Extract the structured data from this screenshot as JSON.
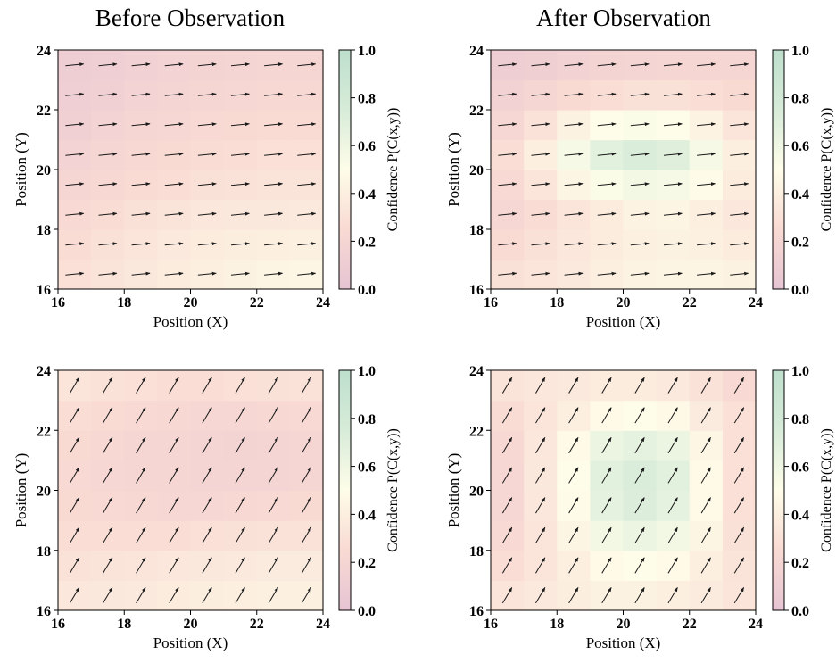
{
  "figure": {
    "column_titles": [
      "Before Observation",
      "After Observation"
    ]
  },
  "chart_data": [
    {
      "type": "heatmap",
      "panel": "top-left",
      "title": "Before Observation",
      "xlabel": "Position (X)",
      "ylabel": "Position (Y)",
      "xlim": [
        16,
        24
      ],
      "ylim": [
        16,
        24
      ],
      "xticks": [
        "16",
        "18",
        "20",
        "22",
        "24"
      ],
      "yticks": [
        "16",
        "18",
        "20",
        "22",
        "24"
      ],
      "grid_x": [
        16.5,
        17.5,
        18.5,
        19.5,
        20.5,
        21.5,
        22.5,
        23.5
      ],
      "grid_y": [
        16.5,
        17.5,
        18.5,
        19.5,
        20.5,
        21.5,
        22.5,
        23.5
      ],
      "values": [
        [
          0.29,
          0.32,
          0.35,
          0.38,
          0.4,
          0.42,
          0.44,
          0.45
        ],
        [
          0.27,
          0.3,
          0.33,
          0.36,
          0.38,
          0.39,
          0.4,
          0.41
        ],
        [
          0.24,
          0.27,
          0.3,
          0.32,
          0.34,
          0.35,
          0.35,
          0.36
        ],
        [
          0.2,
          0.23,
          0.26,
          0.28,
          0.3,
          0.31,
          0.32,
          0.32
        ],
        [
          0.17,
          0.2,
          0.23,
          0.25,
          0.27,
          0.28,
          0.29,
          0.29
        ],
        [
          0.14,
          0.17,
          0.2,
          0.22,
          0.24,
          0.25,
          0.26,
          0.26
        ],
        [
          0.12,
          0.14,
          0.17,
          0.19,
          0.21,
          0.22,
          0.23,
          0.23
        ],
        [
          0.1,
          0.12,
          0.15,
          0.17,
          0.18,
          0.19,
          0.2,
          0.2
        ]
      ],
      "vector": {
        "dx": 0.55,
        "dy": 0.06
      },
      "colorbar": {
        "label": "Confidence P(C(x,y))",
        "ticks": [
          "0.0",
          "0.2",
          "0.4",
          "0.6",
          "0.8",
          "1.0"
        ],
        "range": [
          0,
          1
        ]
      }
    },
    {
      "type": "heatmap",
      "panel": "top-right",
      "title": "After Observation",
      "xlabel": "Position (X)",
      "ylabel": "Position (Y)",
      "xlim": [
        16,
        24
      ],
      "ylim": [
        16,
        24
      ],
      "xticks": [
        "16",
        "18",
        "20",
        "22",
        "24"
      ],
      "yticks": [
        "16",
        "18",
        "20",
        "22",
        "24"
      ],
      "grid_x": [
        16.5,
        17.5,
        18.5,
        19.5,
        20.5,
        21.5,
        22.5,
        23.5
      ],
      "grid_y": [
        16.5,
        17.5,
        18.5,
        19.5,
        20.5,
        21.5,
        22.5,
        23.5
      ],
      "values": [
        [
          0.3,
          0.33,
          0.36,
          0.4,
          0.43,
          0.44,
          0.44,
          0.42
        ],
        [
          0.26,
          0.3,
          0.34,
          0.38,
          0.41,
          0.42,
          0.41,
          0.38
        ],
        [
          0.22,
          0.27,
          0.33,
          0.38,
          0.43,
          0.44,
          0.4,
          0.34
        ],
        [
          0.24,
          0.33,
          0.44,
          0.52,
          0.58,
          0.56,
          0.49,
          0.38
        ],
        [
          0.28,
          0.4,
          0.56,
          0.68,
          0.73,
          0.7,
          0.56,
          0.4
        ],
        [
          0.22,
          0.31,
          0.42,
          0.5,
          0.52,
          0.5,
          0.43,
          0.33
        ],
        [
          0.16,
          0.21,
          0.25,
          0.28,
          0.3,
          0.3,
          0.28,
          0.25
        ],
        [
          0.1,
          0.13,
          0.16,
          0.18,
          0.19,
          0.2,
          0.21,
          0.21
        ]
      ],
      "vector": {
        "dx": 0.55,
        "dy": 0.06
      },
      "colorbar": {
        "label": "Confidence P(C(x,y))",
        "ticks": [
          "0.0",
          "0.2",
          "0.4",
          "0.6",
          "0.8",
          "1.0"
        ],
        "range": [
          0,
          1
        ]
      }
    },
    {
      "type": "heatmap",
      "panel": "bottom-left",
      "title": "",
      "xlabel": "Position (X)",
      "ylabel": "Position (Y)",
      "xlim": [
        16,
        24
      ],
      "ylim": [
        16,
        24
      ],
      "xticks": [
        "16",
        "18",
        "20",
        "22",
        "24"
      ],
      "yticks": [
        "16",
        "18",
        "20",
        "22",
        "24"
      ],
      "grid_x": [
        16.5,
        17.5,
        18.5,
        19.5,
        20.5,
        21.5,
        22.5,
        23.5
      ],
      "grid_y": [
        16.5,
        17.5,
        18.5,
        19.5,
        20.5,
        21.5,
        22.5,
        23.5
      ],
      "values": [
        [
          0.34,
          0.35,
          0.36,
          0.38,
          0.39,
          0.4,
          0.41,
          0.41
        ],
        [
          0.31,
          0.32,
          0.33,
          0.34,
          0.35,
          0.36,
          0.37,
          0.37
        ],
        [
          0.28,
          0.28,
          0.28,
          0.28,
          0.29,
          0.3,
          0.31,
          0.31
        ],
        [
          0.25,
          0.24,
          0.23,
          0.22,
          0.22,
          0.23,
          0.24,
          0.25
        ],
        [
          0.24,
          0.22,
          0.21,
          0.2,
          0.19,
          0.19,
          0.19,
          0.2
        ],
        [
          0.25,
          0.23,
          0.21,
          0.2,
          0.19,
          0.18,
          0.19,
          0.2
        ],
        [
          0.28,
          0.26,
          0.24,
          0.23,
          0.22,
          0.22,
          0.23,
          0.24
        ],
        [
          0.33,
          0.31,
          0.29,
          0.28,
          0.28,
          0.29,
          0.3,
          0.31
        ]
      ],
      "vector": {
        "dx": 0.28,
        "dy": 0.52
      },
      "colorbar": {
        "label": "Confidence P(C(x,y))",
        "ticks": [
          "0.0",
          "0.2",
          "0.4",
          "0.6",
          "0.8",
          "1.0"
        ],
        "range": [
          0,
          1
        ]
      }
    },
    {
      "type": "heatmap",
      "panel": "bottom-right",
      "title": "",
      "xlabel": "Position (X)",
      "ylabel": "Position (Y)",
      "xlim": [
        16,
        24
      ],
      "ylim": [
        16,
        24
      ],
      "xticks": [
        "16",
        "18",
        "20",
        "22",
        "24"
      ],
      "yticks": [
        "16",
        "18",
        "20",
        "22",
        "24"
      ],
      "grid_x": [
        16.5,
        17.5,
        18.5,
        19.5,
        20.5,
        21.5,
        22.5,
        23.5
      ],
      "grid_y": [
        16.5,
        17.5,
        18.5,
        19.5,
        20.5,
        21.5,
        22.5,
        23.5
      ],
      "values": [
        [
          0.33,
          0.36,
          0.39,
          0.42,
          0.42,
          0.4,
          0.37,
          0.33
        ],
        [
          0.28,
          0.33,
          0.4,
          0.48,
          0.5,
          0.48,
          0.4,
          0.32
        ],
        [
          0.24,
          0.33,
          0.44,
          0.58,
          0.62,
          0.58,
          0.44,
          0.3
        ],
        [
          0.22,
          0.34,
          0.49,
          0.66,
          0.72,
          0.66,
          0.48,
          0.29
        ],
        [
          0.22,
          0.35,
          0.5,
          0.68,
          0.74,
          0.68,
          0.48,
          0.29
        ],
        [
          0.23,
          0.34,
          0.48,
          0.62,
          0.66,
          0.62,
          0.45,
          0.29
        ],
        [
          0.27,
          0.33,
          0.4,
          0.48,
          0.5,
          0.47,
          0.37,
          0.29
        ],
        [
          0.32,
          0.34,
          0.36,
          0.38,
          0.38,
          0.36,
          0.31,
          0.24
        ]
      ],
      "vector": {
        "dx": 0.28,
        "dy": 0.52
      },
      "colorbar": {
        "label": "Confidence P(C(x,y))",
        "ticks": [
          "0.0",
          "0.2",
          "0.4",
          "0.6",
          "0.8",
          "1.0"
        ],
        "range": [
          0,
          1
        ]
      }
    }
  ],
  "colormap": {
    "stops": [
      {
        "v": 0.0,
        "color": "#e6c4d3"
      },
      {
        "v": 0.25,
        "color": "#f9dad3"
      },
      {
        "v": 0.5,
        "color": "#fefde9"
      },
      {
        "v": 0.75,
        "color": "#d7ecd9"
      },
      {
        "v": 1.0,
        "color": "#bedfcd"
      }
    ],
    "arrow_color": "#1a1a1a"
  }
}
